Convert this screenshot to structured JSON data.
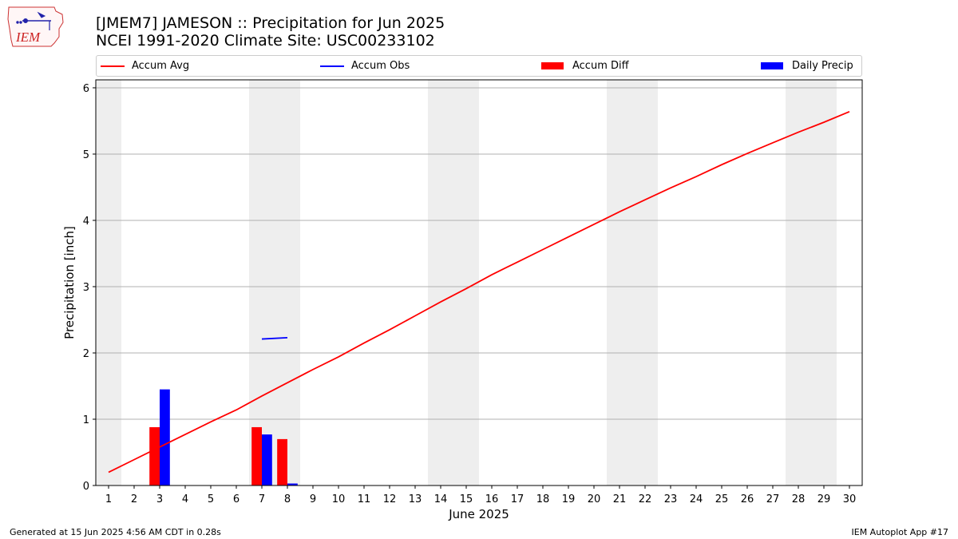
{
  "title": "[JMEM7] JAMESON :: Precipitation for Jun 2025",
  "subtitle": "NCEI 1991-2020 Climate Site: USC00233102",
  "logo_text": "IEM",
  "footer_left": "Generated at 15 Jun 2025 4:56 AM CDT in 0.28s",
  "footer_right": "IEM Autoplot App #17",
  "legend": [
    {
      "label": "Accum Avg",
      "kind": "line",
      "color": "#ff0000"
    },
    {
      "label": "Accum Obs",
      "kind": "line",
      "color": "#0000ff"
    },
    {
      "label": "Accum Diff",
      "kind": "bar",
      "color": "#ff0000"
    },
    {
      "label": "Daily Precip",
      "kind": "bar",
      "color": "#0000ff"
    }
  ],
  "chart_data": {
    "type": "bar",
    "xlabel": "June 2025",
    "ylabel": "Precipitation [inch]",
    "x": [
      1,
      2,
      3,
      4,
      5,
      6,
      7,
      8,
      9,
      10,
      11,
      12,
      13,
      14,
      15,
      16,
      17,
      18,
      19,
      20,
      21,
      22,
      23,
      24,
      25,
      26,
      27,
      28,
      29,
      30
    ],
    "xlim": [
      0.5,
      30.5
    ],
    "ylim": [
      0,
      6.12
    ],
    "yticks": [
      0,
      1,
      2,
      3,
      4,
      5,
      6
    ],
    "grid": "horizontal",
    "weekend_shading": [
      [
        0.5,
        1.5
      ],
      [
        6.5,
        8.5
      ],
      [
        13.5,
        15.5
      ],
      [
        20.5,
        22.5
      ],
      [
        27.5,
        29.5
      ]
    ],
    "weekend_color": "#eeeeee",
    "series": [
      {
        "name": "Accum Avg",
        "kind": "line",
        "color": "#ff0000",
        "x": [
          1,
          2,
          3,
          4,
          5,
          6,
          7,
          8,
          9,
          10,
          11,
          12,
          13,
          14,
          15,
          16,
          17,
          18,
          19,
          20,
          21,
          22,
          23,
          24,
          25,
          26,
          27,
          28,
          29,
          30
        ],
        "values": [
          0.2,
          0.39,
          0.58,
          0.77,
          0.96,
          1.14,
          1.35,
          1.55,
          1.75,
          1.94,
          2.15,
          2.35,
          2.56,
          2.77,
          2.97,
          3.18,
          3.37,
          3.56,
          3.75,
          3.94,
          4.13,
          4.31,
          4.49,
          4.66,
          4.84,
          5.01,
          5.17,
          5.33,
          5.48,
          5.64
        ]
      },
      {
        "name": "Accum Obs",
        "kind": "line",
        "color": "#0000ff",
        "x": [
          7,
          8
        ],
        "values": [
          2.21,
          2.23
        ]
      },
      {
        "name": "Accum Diff",
        "kind": "bar",
        "color": "#ff0000",
        "x": [
          3,
          7,
          8
        ],
        "values": [
          0.88,
          0.88,
          0.7
        ]
      },
      {
        "name": "Daily Precip",
        "kind": "bar",
        "color": "#0000ff",
        "x": [
          3,
          7,
          8
        ],
        "values": [
          1.45,
          0.77,
          0.03
        ]
      }
    ]
  }
}
